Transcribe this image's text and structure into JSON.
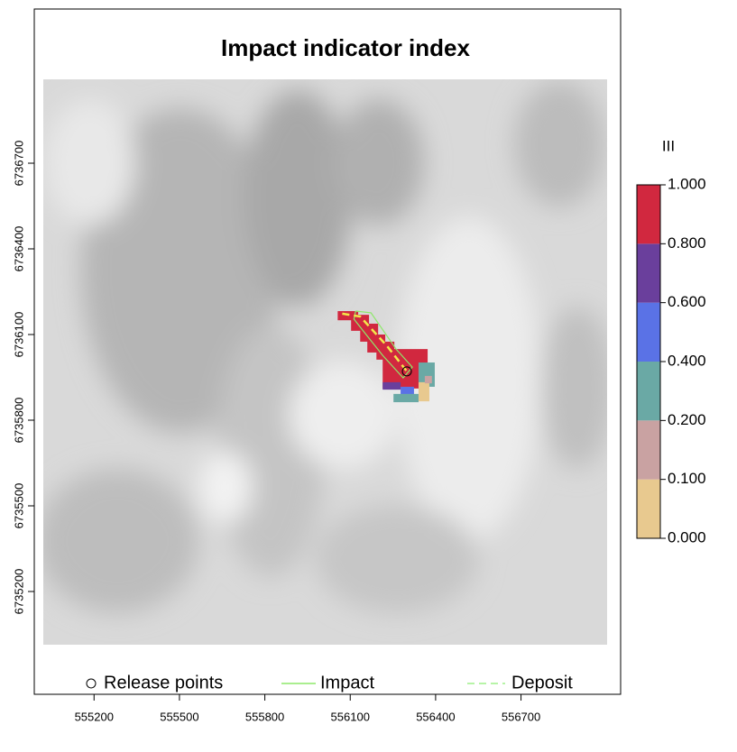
{
  "chart_data": {
    "type": "map",
    "title": "Impact indicator index",
    "xlim": [
      554990,
      557050
    ],
    "ylim": [
      6734840,
      6737240
    ],
    "xticks": [
      555200,
      555500,
      555800,
      556100,
      556400,
      556700
    ],
    "yticks": [
      6735200,
      6735500,
      6735800,
      6736100,
      6736400,
      6736700
    ],
    "legend": {
      "title": "III",
      "breaks": [
        {
          "value": 0,
          "label": "0.000"
        },
        {
          "value": 0.1,
          "label": "0.100"
        },
        {
          "value": 0.2,
          "label": "0.200"
        },
        {
          "value": 0.4,
          "label": "0.400"
        },
        {
          "value": 0.6,
          "label": "0.600"
        },
        {
          "value": 0.8,
          "label": "0.800"
        },
        {
          "value": 1,
          "label": "1.000"
        }
      ],
      "colors": [
        "#e8c98f",
        "#c9a2a2",
        "#6aa9a5",
        "#5a72e6",
        "#6a3f9c",
        "#d1283f"
      ]
    },
    "cells": [
      {
        "x": [
          556056,
          556128
        ],
        "y": [
          6736150,
          6736182
        ],
        "value": 0.9
      },
      {
        "x": [
          556103,
          556166
        ],
        "y": [
          6736113,
          6736169
        ],
        "value": 0.9
      },
      {
        "x": [
          556135,
          556198
        ],
        "y": [
          6736075,
          6736138
        ],
        "value": 0.9
      },
      {
        "x": [
          556160,
          556223
        ],
        "y": [
          6736037,
          6736100
        ],
        "value": 0.9
      },
      {
        "x": [
          556192,
          556255
        ],
        "y": [
          6736012,
          6736075
        ],
        "value": 0.9
      },
      {
        "x": [
          556214,
          556372
        ],
        "y": [
          6735911,
          6736049
        ],
        "value": 0.9
      },
      {
        "x": [
          556214,
          556277
        ],
        "y": [
          6735907,
          6735933
        ],
        "value": 0.7
      },
      {
        "x": [
          556340,
          556397
        ],
        "y": [
          6735917,
          6736002
        ],
        "value": 0.3
      },
      {
        "x": [
          556277,
          556324
        ],
        "y": [
          6735885,
          6735917
        ],
        "value": 0.5
      },
      {
        "x": [
          556252,
          556340
        ],
        "y": [
          6735863,
          6735892
        ],
        "value": 0.3
      },
      {
        "x": [
          556340,
          556378
        ],
        "y": [
          6735866,
          6735933
        ],
        "value": 0.05
      },
      {
        "x": [
          556362,
          556387
        ],
        "y": [
          6735929,
          6735955
        ],
        "value": 0.15
      }
    ],
    "impact": {
      "name": "Impact",
      "color": "#8ee86a",
      "x": [
        556119,
        556173,
        556261,
        556318,
        556286,
        556214,
        556151,
        556113,
        556119
      ],
      "y": [
        6736182,
        6736176,
        6736049,
        6735986,
        6735948,
        6736027,
        6736106,
        6736154,
        6736182
      ]
    },
    "deposit": {
      "name": "Deposit",
      "color": "#f2e84a",
      "x": [
        556072,
        556135,
        556230,
        556299
      ],
      "y": [
        6736173,
        6736163,
        6736059,
        6735971
      ]
    },
    "release": {
      "name": "Release points",
      "x": [
        556299
      ],
      "y": [
        6735971
      ]
    }
  }
}
